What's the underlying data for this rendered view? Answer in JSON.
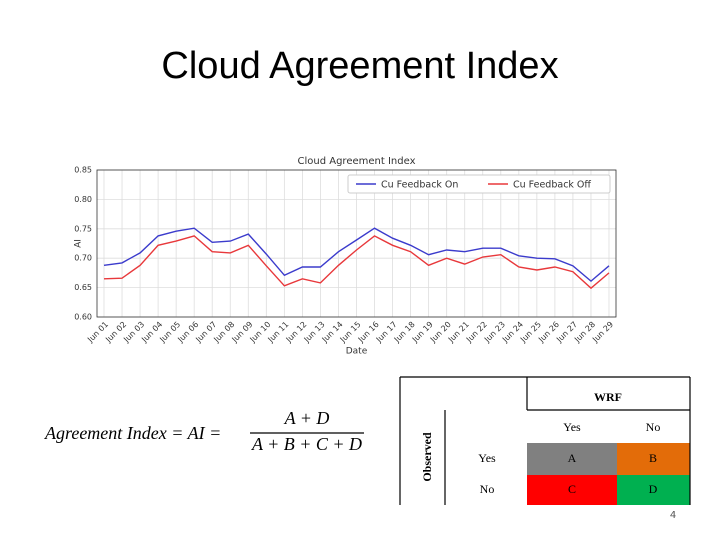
{
  "slide": {
    "title": "Cloud Agreement Index",
    "page_number": "4"
  },
  "formula": {
    "lhs": "Agreement Index = AI =",
    "numerator": "A + D",
    "denominator": "A + B + C + D"
  },
  "table": {
    "column_group": "WRF",
    "row_group": "Observed",
    "columns": [
      "Yes",
      "No"
    ],
    "rows": [
      [
        "Yes",
        "A",
        "B"
      ],
      [
        "No",
        "C",
        "D"
      ]
    ]
  },
  "chart_data": {
    "type": "line",
    "title": "Cloud Agreement Index",
    "x_label": "Date",
    "y_label": "AI",
    "categories": [
      "Jun 01",
      "Jun 02",
      "Jun 03",
      "Jun 04",
      "Jun 05",
      "Jun 06",
      "Jun 07",
      "Jun 08",
      "Jun 09",
      "Jun 10",
      "Jun 11",
      "Jun 12",
      "Jun 13",
      "Jun 14",
      "Jun 15",
      "Jun 16",
      "Jun 17",
      "Jun 18",
      "Jun 19",
      "Jun 20",
      "Jun 21",
      "Jun 22",
      "Jun 23",
      "Jun 24",
      "Jun 25",
      "Jun 26",
      "Jun 27",
      "Jun 28",
      "Jun 29"
    ],
    "series": [
      {
        "name": "Cu Feedback On",
        "color": "#3b3bcc",
        "values": [
          0.688,
          0.692,
          0.709,
          0.738,
          0.746,
          0.751,
          0.727,
          0.729,
          0.741,
          0.707,
          0.671,
          0.685,
          0.685,
          0.711,
          0.731,
          0.751,
          0.734,
          0.722,
          0.706,
          0.714,
          0.711,
          0.717,
          0.717,
          0.704,
          0.7,
          0.699,
          0.687,
          0.661,
          0.687
        ]
      },
      {
        "name": "Cu Feedback Off",
        "color": "#e8383b",
        "values": [
          0.665,
          0.666,
          0.688,
          0.722,
          0.729,
          0.738,
          0.711,
          0.709,
          0.722,
          0.687,
          0.653,
          0.665,
          0.658,
          0.688,
          0.714,
          0.738,
          0.722,
          0.711,
          0.688,
          0.7,
          0.69,
          0.702,
          0.706,
          0.685,
          0.68,
          0.685,
          0.677,
          0.649,
          0.675
        ]
      }
    ],
    "ylim": [
      0.6,
      0.85
    ],
    "yticks": [
      {
        "value": 0.6,
        "label": "0.60"
      },
      0.65,
      {
        "value": 0.7,
        "label": "0.70"
      },
      0.75,
      {
        "value": 0.8,
        "label": "0.80"
      },
      0.85
    ],
    "grid": true,
    "legend": "upper right"
  }
}
